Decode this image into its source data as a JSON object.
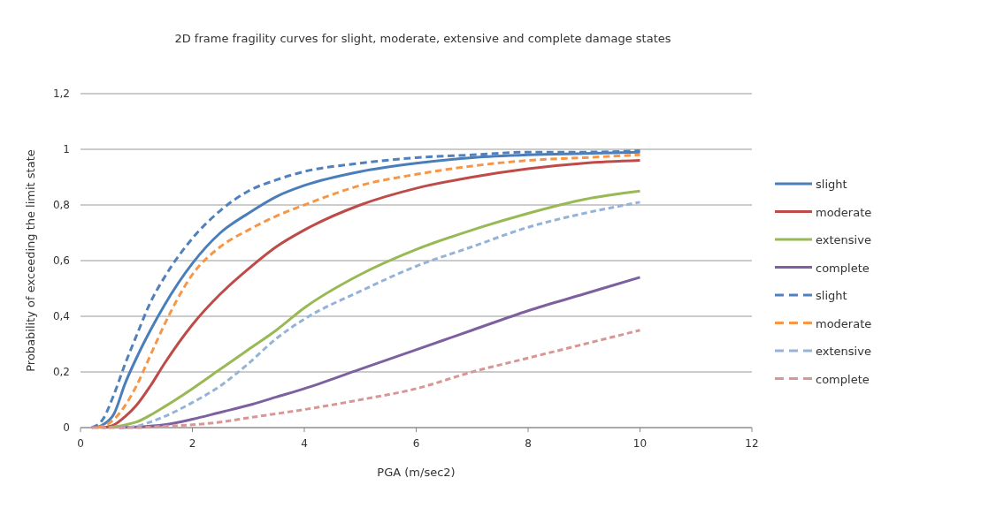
{
  "chart_data": {
    "type": "line",
    "title": "2D frame fragility curves for slight, moderate, extensive and complete  damage states",
    "xlabel": "PGA (m/sec2)",
    "ylabel": "Probability of exceeding  the limit state",
    "xlim": [
      0,
      12
    ],
    "xticks": [
      0,
      2,
      4,
      6,
      8,
      10,
      12
    ],
    "ylim": [
      0,
      1.2
    ],
    "yticks": [
      {
        "value": 0,
        "label": "0"
      },
      {
        "value": 0.2,
        "label": "0,2"
      },
      {
        "value": 0.4,
        "label": "0,4"
      },
      {
        "value": 0.6,
        "label": "0,6"
      },
      {
        "value": 0.8,
        "label": "0,8"
      },
      {
        "value": 1,
        "label": "1"
      },
      {
        "value": 1.2,
        "label": "1,2"
      }
    ],
    "grid": "y",
    "legend": "right",
    "series": [
      {
        "name": "slight",
        "color": "#4a7ebb",
        "line_style": "solid",
        "x": [
          0.3,
          0.4,
          0.6,
          0.8,
          1,
          1.25,
          1.5,
          2,
          2.5,
          3,
          3.5,
          4,
          5,
          6,
          7,
          8,
          9,
          10
        ],
        "values": [
          0,
          0.01,
          0.05,
          0.16,
          0.25,
          0.35,
          0.44,
          0.59,
          0.7,
          0.77,
          0.83,
          0.87,
          0.92,
          0.95,
          0.97,
          0.98,
          0.985,
          0.99
        ]
      },
      {
        "name": "moderate",
        "color": "#be4b48",
        "line_style": "solid",
        "x": [
          0.4,
          0.6,
          0.8,
          1,
          1.25,
          1.5,
          2,
          2.5,
          3,
          3.5,
          4,
          5,
          6,
          7,
          8,
          9,
          10
        ],
        "values": [
          0,
          0.01,
          0.04,
          0.08,
          0.15,
          0.23,
          0.37,
          0.48,
          0.57,
          0.65,
          0.71,
          0.8,
          0.86,
          0.9,
          0.93,
          0.95,
          0.96
        ]
      },
      {
        "name": "extensive",
        "color": "#98b954",
        "line_style": "solid",
        "x": [
          0.5,
          0.6,
          0.8,
          1,
          1.25,
          1.5,
          2,
          2.5,
          3,
          3.5,
          4,
          5,
          6,
          7,
          8,
          9,
          10
        ],
        "values": [
          0,
          0.003,
          0.01,
          0.02,
          0.045,
          0.075,
          0.14,
          0.21,
          0.28,
          0.35,
          0.43,
          0.55,
          0.64,
          0.71,
          0.77,
          0.82,
          0.85
        ]
      },
      {
        "name": "complete",
        "color": "#7d60a0",
        "line_style": "solid",
        "x": [
          0.7,
          1,
          1.5,
          2,
          2.5,
          3,
          3.5,
          4,
          5,
          6,
          7,
          8,
          9,
          10
        ],
        "values": [
          0,
          0.002,
          0.01,
          0.03,
          0.055,
          0.08,
          0.11,
          0.14,
          0.21,
          0.28,
          0.35,
          0.42,
          0.48,
          0.54
        ]
      },
      {
        "name": "slight",
        "color": "#4f81bd",
        "line_style": "dashed",
        "x": [
          0.2,
          0.4,
          0.6,
          0.8,
          1,
          1.25,
          1.5,
          2,
          2.5,
          3,
          3.5,
          4,
          5,
          6,
          7,
          8,
          9,
          10
        ],
        "values": [
          0,
          0.03,
          0.12,
          0.23,
          0.33,
          0.45,
          0.54,
          0.68,
          0.78,
          0.85,
          0.89,
          0.92,
          0.95,
          0.97,
          0.98,
          0.99,
          0.99,
          0.995
        ]
      },
      {
        "name": "moderate",
        "color": "#f79646",
        "line_style": "dashed",
        "x": [
          0.3,
          0.4,
          0.6,
          0.8,
          1,
          1.25,
          1.5,
          2,
          2.5,
          3,
          3.5,
          4,
          5,
          6,
          7,
          8,
          9,
          10
        ],
        "values": [
          0,
          0.005,
          0.03,
          0.08,
          0.15,
          0.26,
          0.37,
          0.55,
          0.65,
          0.71,
          0.76,
          0.8,
          0.87,
          0.91,
          0.94,
          0.96,
          0.97,
          0.98
        ]
      },
      {
        "name": "extensive",
        "color": "#95b3d7",
        "line_style": "dashed",
        "x": [
          0.7,
          1,
          1.25,
          1.5,
          2,
          2.5,
          3,
          3.5,
          4,
          5,
          6,
          7,
          8,
          9,
          10
        ],
        "values": [
          0,
          0.005,
          0.02,
          0.04,
          0.09,
          0.15,
          0.23,
          0.32,
          0.39,
          0.49,
          0.58,
          0.65,
          0.72,
          0.77,
          0.81
        ]
      },
      {
        "name": "complete",
        "color": "#d99694",
        "line_style": "dashed",
        "x": [
          0.2,
          1,
          1.5,
          2,
          2.5,
          3,
          3.5,
          4,
          5,
          6,
          7,
          8,
          9,
          10
        ],
        "values": [
          0,
          0,
          0.005,
          0.01,
          0.02,
          0.035,
          0.05,
          0.065,
          0.1,
          0.14,
          0.2,
          0.25,
          0.3,
          0.35
        ]
      }
    ]
  }
}
